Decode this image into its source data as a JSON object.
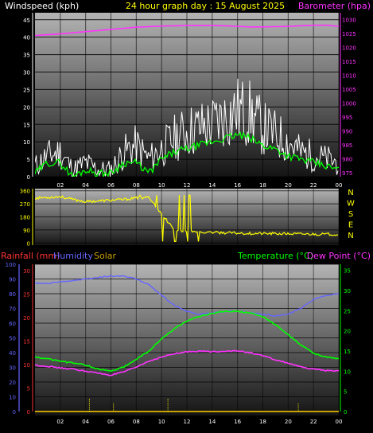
{
  "colors": {
    "background": "#000000",
    "wind_label": "#ffffff",
    "title": "#ffff00",
    "barometer": "#ff33ff",
    "wind_speed": "#ffffff",
    "wind_gust_avg": "#00ff00",
    "direction": "#ffff00",
    "rainfall": "#ff3333",
    "humidity": "#6666ff",
    "solar": "#c8a000",
    "temperature": "#00ff00",
    "dew_point": "#ff33ff",
    "tick_x": "#ffffff",
    "tick_dir": "#ffff00"
  },
  "chart_data": [
    {
      "type": "line",
      "panel": "wind-barometer",
      "title": "24 hour graph day : 15 August 2025",
      "ylabel_left": "Windspeed (kph)",
      "ylabel_right": "Barometer (hpa)",
      "x_ticks": [
        "02",
        "04",
        "06",
        "08",
        "10",
        "12",
        "14",
        "16",
        "18",
        "20",
        "22",
        "00"
      ],
      "y_left_ticks": [
        0,
        5,
        10,
        15,
        20,
        25,
        30,
        35,
        40,
        45
      ],
      "y_left_lim": [
        0,
        47
      ],
      "y_right_ticks": [
        975,
        980,
        985,
        990,
        995,
        1000,
        1005,
        1010,
        1015,
        1020,
        1025,
        1030
      ],
      "y_right_lim": [
        973.5,
        1032.5
      ],
      "x_hours": [
        0,
        1,
        2,
        3,
        4,
        5,
        6,
        7,
        8,
        9,
        10,
        11,
        12,
        13,
        14,
        15,
        16,
        17,
        18,
        19,
        20,
        21,
        22,
        23,
        24
      ],
      "series": [
        {
          "name": "Barometer (hpa)",
          "axis": "right",
          "values": [
            1024.3,
            1024.6,
            1024.9,
            1025.3,
            1025.7,
            1026.1,
            1026.5,
            1026.9,
            1027.3,
            1027.5,
            1027.7,
            1027.8,
            1027.9,
            1027.9,
            1027.9,
            1027.8,
            1027.6,
            1027.4,
            1027.4,
            1027.5,
            1027.6,
            1027.8,
            1028.0,
            1028.0,
            1027.6
          ]
        },
        {
          "name": "Windspeed (kph)",
          "axis": "left",
          "values": [
            3,
            6,
            7,
            2,
            4,
            2,
            2,
            7,
            9,
            5,
            8,
            11,
            13,
            14,
            15,
            17,
            19,
            18,
            14,
            12,
            10,
            7,
            6,
            5,
            4
          ]
        },
        {
          "axis": "left",
          "values": [
            1,
            4,
            4,
            0,
            2,
            1,
            1,
            4,
            4,
            1,
            5,
            7,
            8,
            9,
            10,
            11,
            12,
            11,
            9,
            8,
            6,
            5,
            4,
            3,
            2
          ]
        }
      ]
    },
    {
      "type": "line",
      "panel": "wind-direction",
      "y_ticks": [
        0,
        90,
        180,
        270,
        360
      ],
      "y_lim": [
        -15,
        375
      ],
      "compass_labels": [
        "N",
        "W",
        "S",
        "E",
        "N"
      ],
      "x_hours": [
        0,
        1,
        2,
        3,
        4,
        5,
        6,
        7,
        8,
        9,
        10,
        11,
        12,
        13,
        14,
        15,
        16,
        17,
        18,
        19,
        20,
        21,
        22,
        23,
        24
      ],
      "series": [
        {
          "name": "Wind direction",
          "values": [
            310,
            315,
            320,
            300,
            285,
            290,
            295,
            300,
            310,
            315,
            200,
            90,
            80,
            75,
            72,
            70,
            68,
            66,
            65,
            64,
            63,
            62,
            61,
            60,
            60
          ]
        }
      ]
    },
    {
      "type": "line",
      "panel": "temperature-humidity-rain",
      "legend_left": [
        "Rainfall (mm)",
        "Humidity",
        "Solar"
      ],
      "legend_right": [
        "Temperature (°C)",
        "Dew Point (°C)"
      ],
      "x_ticks": [
        "02",
        "04",
        "06",
        "08",
        "10",
        "12",
        "14",
        "16",
        "18",
        "20",
        "22",
        "00"
      ],
      "humidity_ticks": [
        0,
        10,
        20,
        30,
        40,
        50,
        60,
        70,
        80,
        90,
        100
      ],
      "rain_ticks": [
        0,
        5,
        10,
        15,
        20,
        25,
        30
      ],
      "temp_ticks": [
        0,
        5,
        10,
        15,
        20,
        25,
        30,
        35
      ],
      "temp_lim": [
        0,
        36.5
      ],
      "x_hours": [
        0,
        1,
        2,
        3,
        4,
        5,
        6,
        7,
        8,
        9,
        10,
        11,
        12,
        13,
        14,
        15,
        16,
        17,
        18,
        19,
        20,
        21,
        22,
        23,
        24
      ],
      "series": [
        {
          "name": "Humidity",
          "axis": "humidity",
          "values": [
            87,
            87,
            88,
            89,
            90,
            91,
            92,
            92,
            90,
            86,
            79,
            72,
            68,
            66,
            67,
            68,
            68,
            67,
            66,
            65,
            66,
            70,
            76,
            79,
            80
          ]
        },
        {
          "name": "Temperature (°C)",
          "axis": "temp",
          "values": [
            13.5,
            13,
            12.5,
            12,
            11.5,
            10.5,
            10,
            11,
            13,
            15,
            18,
            20.5,
            22.5,
            23.5,
            24.3,
            24.8,
            24.8,
            24.4,
            23.5,
            21.5,
            19,
            16.5,
            14.5,
            13.5,
            13
          ]
        },
        {
          "name": "Dew Point (°C)",
          "axis": "temp",
          "values": [
            11.5,
            11.2,
            10.8,
            10.5,
            10,
            9.5,
            9,
            9.8,
            11,
            12.5,
            13.5,
            14.3,
            14.8,
            15,
            14.8,
            15,
            15,
            14.6,
            13.8,
            12.8,
            12,
            11,
            10.5,
            10.2,
            10
          ]
        },
        {
          "name": "Rainfall (mm)",
          "axis": "rain",
          "values": [
            0,
            0,
            0,
            0,
            0,
            0,
            0,
            0,
            0,
            0,
            0,
            0,
            0,
            0,
            0,
            0,
            0,
            0,
            0,
            0,
            0,
            0,
            0,
            0,
            0
          ]
        }
      ]
    }
  ]
}
